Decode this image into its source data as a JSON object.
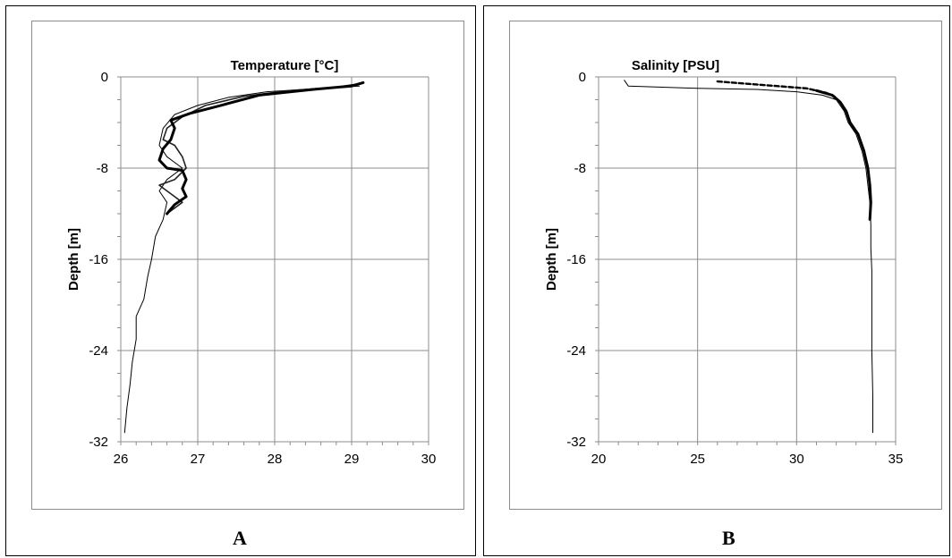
{
  "chart_data": [
    {
      "type": "line",
      "panel_label": "A",
      "title": "Temperature [°C]",
      "xlabel": "",
      "ylabel": "Depth [m]",
      "xlim": [
        26,
        30
      ],
      "ylim": [
        -32,
        0
      ],
      "xticks": [
        26,
        27,
        28,
        29,
        30
      ],
      "yticks": [
        0,
        -8,
        -16,
        -24,
        -32
      ],
      "ytick_labels": [
        "0",
        "-8",
        "-16",
        "-24",
        "-32"
      ],
      "grid": true,
      "series": [
        {
          "style": "thin",
          "points": [
            [
              29.1,
              -0.8
            ],
            [
              28.6,
              -1.0
            ],
            [
              27.9,
              -1.3
            ],
            [
              27.4,
              -1.8
            ],
            [
              27.0,
              -2.5
            ],
            [
              26.7,
              -3.3
            ],
            [
              26.55,
              -4.5
            ],
            [
              26.5,
              -6.0
            ],
            [
              26.6,
              -7.0
            ],
            [
              26.8,
              -8.0
            ],
            [
              26.6,
              -9.0
            ],
            [
              26.5,
              -10.0
            ],
            [
              26.6,
              -11.0
            ],
            [
              26.55,
              -12.5
            ],
            [
              26.45,
              -14.0
            ],
            [
              26.4,
              -16.0
            ],
            [
              26.35,
              -17.5
            ],
            [
              26.3,
              -19.5
            ],
            [
              26.2,
              -21.0
            ],
            [
              26.2,
              -23.0
            ],
            [
              26.15,
              -25.0
            ],
            [
              26.12,
              -27.0
            ],
            [
              26.08,
              -29.0
            ],
            [
              26.05,
              -31.2
            ]
          ]
        },
        {
          "style": "medium",
          "points": [
            [
              29.1,
              -0.6
            ],
            [
              28.8,
              -0.9
            ],
            [
              28.2,
              -1.2
            ],
            [
              27.6,
              -1.7
            ],
            [
              27.1,
              -2.5
            ],
            [
              26.8,
              -3.5
            ],
            [
              26.6,
              -4.5
            ],
            [
              26.55,
              -5.5
            ],
            [
              26.7,
              -6.0
            ],
            [
              26.8,
              -7.0
            ],
            [
              26.85,
              -8.0
            ],
            [
              26.7,
              -9.0
            ],
            [
              26.5,
              -9.5
            ],
            [
              26.7,
              -10.5
            ],
            [
              26.8,
              -11.0
            ],
            [
              26.6,
              -12.0
            ]
          ]
        },
        {
          "style": "thick",
          "points": [
            [
              29.15,
              -0.5
            ],
            [
              29.0,
              -0.8
            ],
            [
              28.5,
              -1.1
            ],
            [
              27.8,
              -1.6
            ],
            [
              27.3,
              -2.5
            ],
            [
              26.9,
              -3.2
            ],
            [
              26.65,
              -3.8
            ],
            [
              26.7,
              -4.5
            ],
            [
              26.65,
              -5.5
            ],
            [
              26.55,
              -6.3
            ],
            [
              26.5,
              -7.3
            ],
            [
              26.6,
              -8.0
            ],
            [
              26.8,
              -8.2
            ],
            [
              26.85,
              -9.0
            ],
            [
              26.8,
              -9.8
            ],
            [
              26.85,
              -10.5
            ],
            [
              26.7,
              -11.2
            ],
            [
              26.6,
              -12.0
            ]
          ]
        }
      ]
    },
    {
      "type": "line",
      "panel_label": "B",
      "title": "Salinity [PSU]",
      "xlabel": "",
      "ylabel": "Depth [m]",
      "xlim": [
        20,
        35
      ],
      "ylim": [
        -32,
        0
      ],
      "xticks": [
        20,
        25,
        30,
        35
      ],
      "yticks": [
        0,
        -8,
        -16,
        -24,
        -32
      ],
      "ytick_labels": [
        "0",
        "-8",
        "-16",
        "-24",
        "-32"
      ],
      "grid": true,
      "series": [
        {
          "style": "thin",
          "points": [
            [
              21.3,
              -0.3
            ],
            [
              21.5,
              -0.8
            ],
            [
              25.0,
              -1.0
            ],
            [
              28.0,
              -1.1
            ],
            [
              30.0,
              -1.3
            ],
            [
              31.3,
              -1.6
            ],
            [
              32.0,
              -2.0
            ],
            [
              32.4,
              -3.0
            ],
            [
              32.6,
              -4.0
            ],
            [
              33.0,
              -5.0
            ],
            [
              33.3,
              -6.5
            ],
            [
              33.5,
              -8.0
            ],
            [
              33.6,
              -9.5
            ],
            [
              33.7,
              -11.0
            ],
            [
              33.75,
              -13.0
            ],
            [
              33.75,
              -15.0
            ],
            [
              33.8,
              -17.0
            ],
            [
              33.8,
              -20.0
            ],
            [
              33.8,
              -24.0
            ],
            [
              33.85,
              -28.0
            ],
            [
              33.85,
              -31.2
            ]
          ]
        },
        {
          "style": "dashed",
          "points": [
            [
              26.0,
              -0.4
            ],
            [
              27.5,
              -0.6
            ],
            [
              29.0,
              -0.8
            ],
            [
              30.5,
              -1.0
            ],
            [
              31.5,
              -1.4
            ],
            [
              32.0,
              -1.8
            ]
          ]
        },
        {
          "style": "thick",
          "points": [
            [
              31.0,
              -1.2
            ],
            [
              31.8,
              -1.6
            ],
            [
              32.2,
              -2.2
            ],
            [
              32.5,
              -3.0
            ],
            [
              32.7,
              -4.0
            ],
            [
              33.1,
              -5.0
            ],
            [
              33.4,
              -6.5
            ],
            [
              33.6,
              -8.0
            ],
            [
              33.7,
              -9.5
            ],
            [
              33.75,
              -11.0
            ],
            [
              33.7,
              -12.5
            ]
          ]
        }
      ]
    }
  ]
}
